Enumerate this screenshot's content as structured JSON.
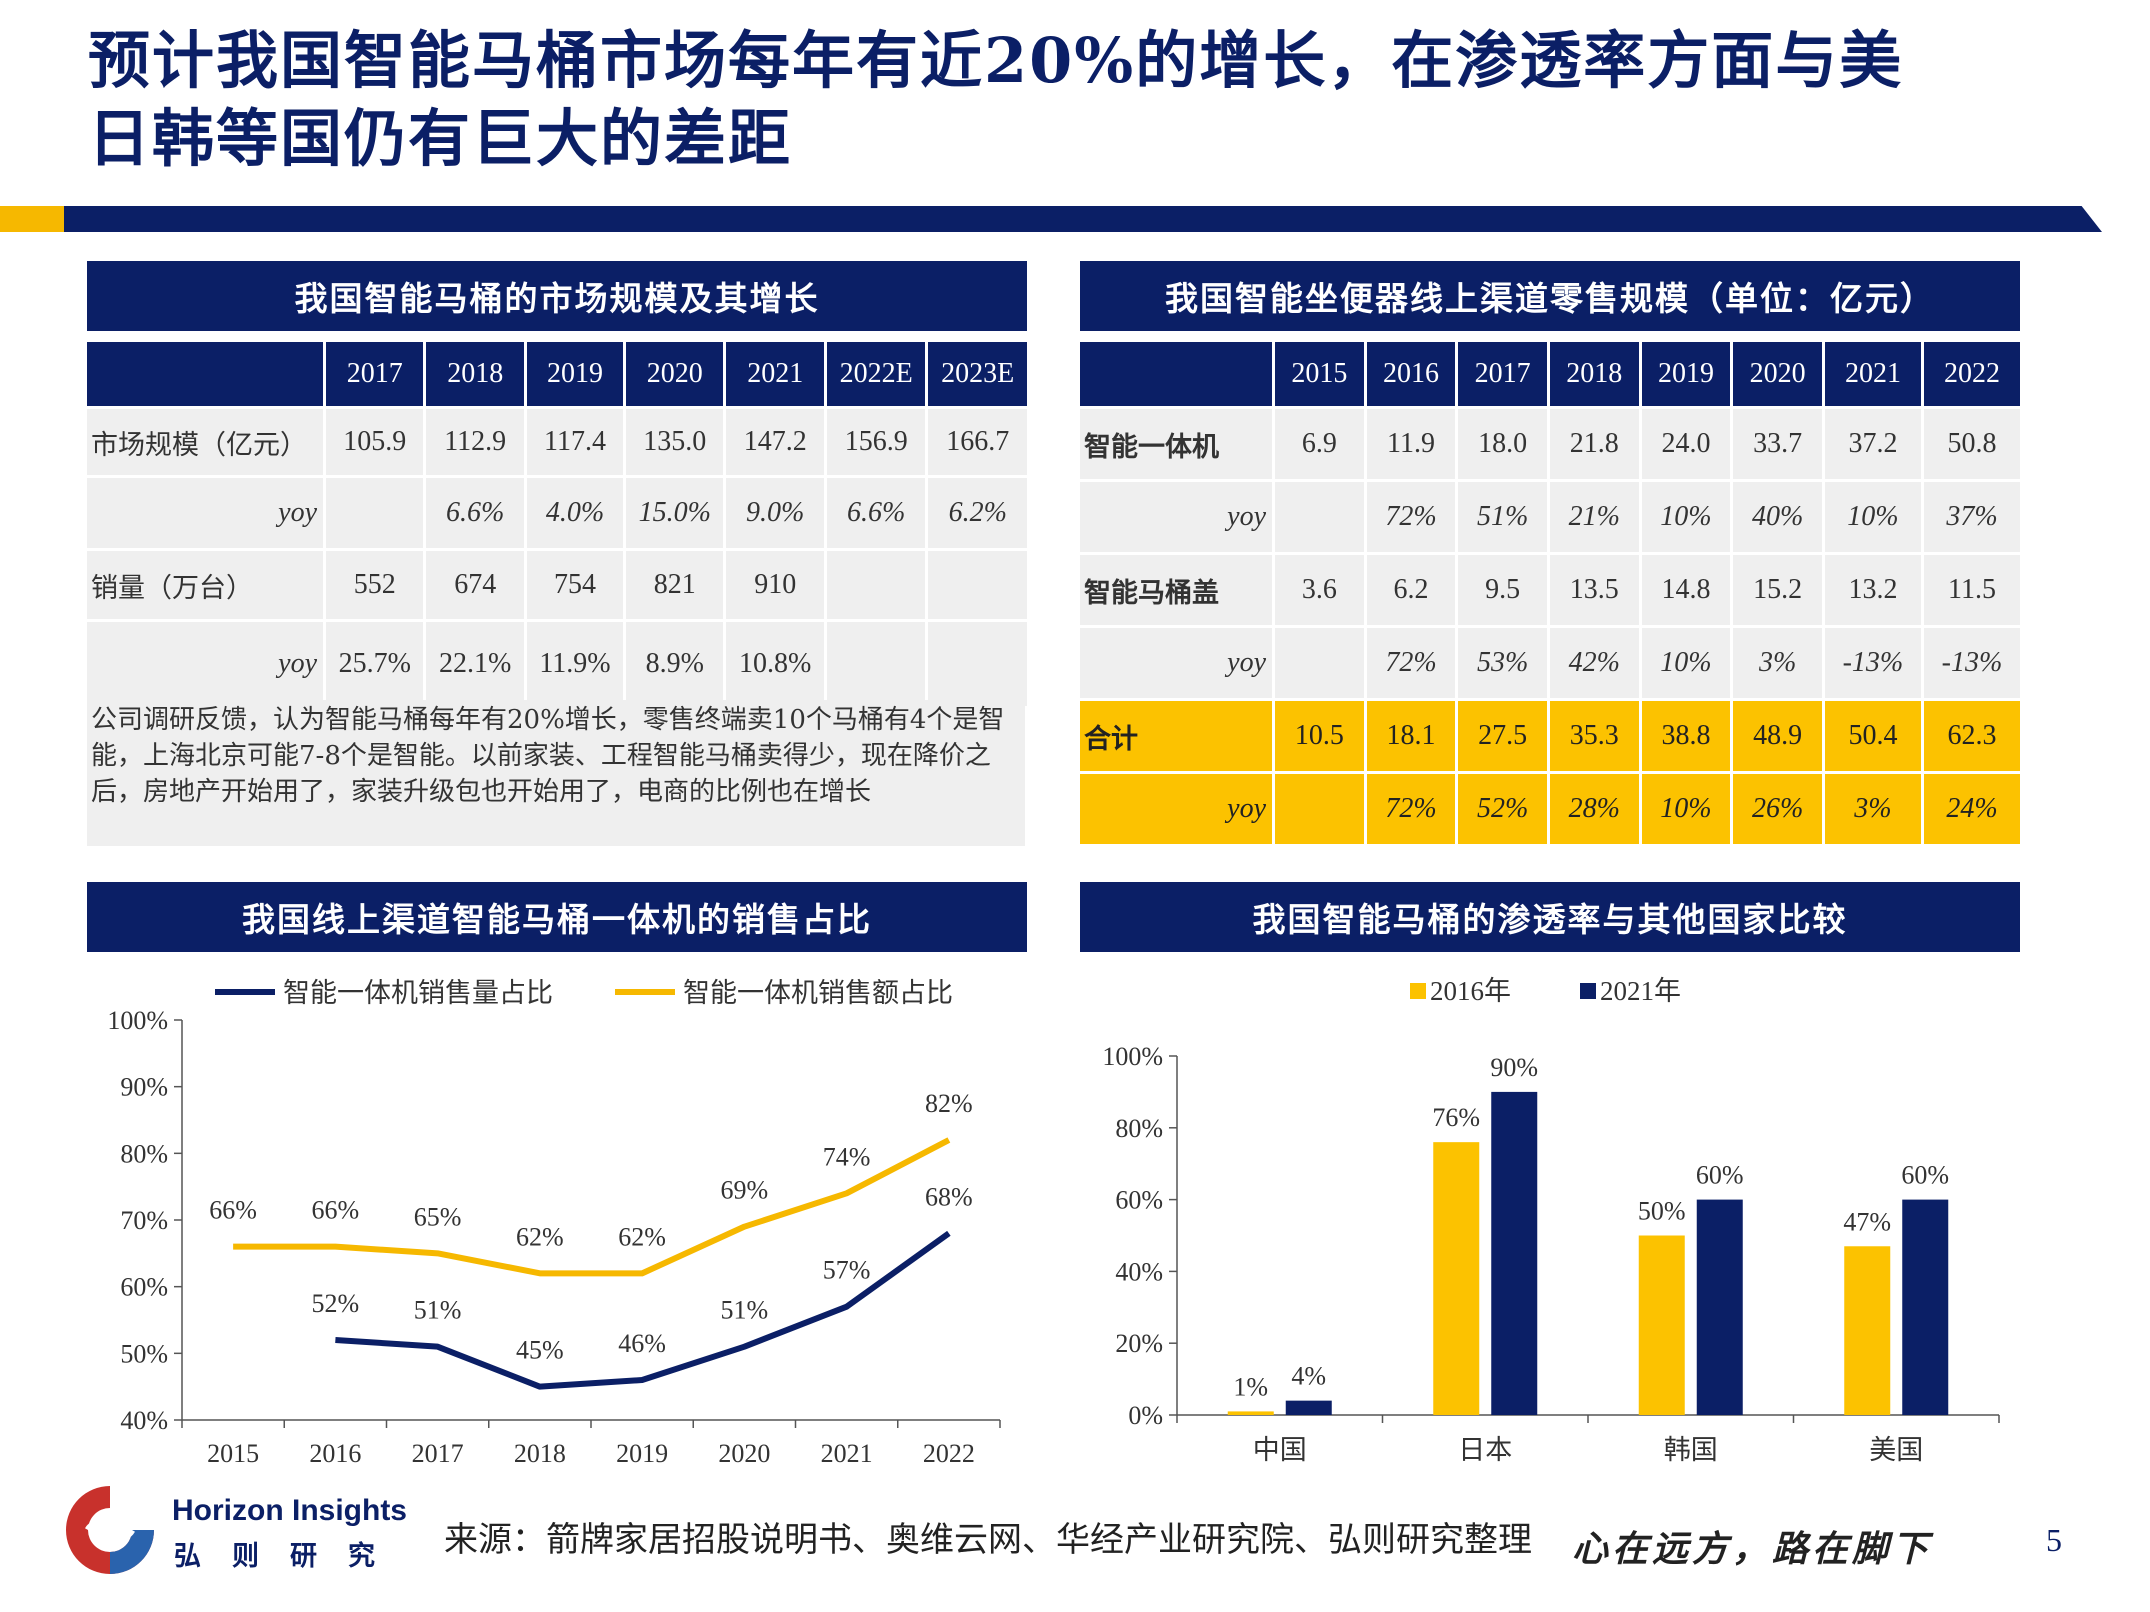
{
  "title": {
    "line1": "预计我国智能马桶市场每年有近20%的增长，在渗透率方面与美",
    "line2": "日韩等国仍有巨大的差距"
  },
  "colors": {
    "navy": "#0b1f66",
    "gold": "#fcc200",
    "gray": "#efefef"
  },
  "panel1": {
    "header": "我国智能马桶的市场规模及其增长",
    "columns": [
      "2017",
      "2018",
      "2019",
      "2020",
      "2021",
      "2022E",
      "2023E"
    ],
    "rows": [
      {
        "label": "市场规模（亿元）",
        "cells": [
          "105.9",
          "112.9",
          "117.4",
          "135.0",
          "147.2",
          "156.9",
          "166.7"
        ]
      },
      {
        "label": "yoy",
        "cells": [
          "",
          "6.6%",
          "4.0%",
          "15.0%",
          "9.0%",
          "6.6%",
          "6.2%"
        ]
      },
      {
        "label": "销量（万台）",
        "cells": [
          "552",
          "674",
          "754",
          "821",
          "910",
          "",
          ""
        ]
      },
      {
        "label": "yoy",
        "cells": [
          "25.7%",
          "22.1%",
          "11.9%",
          "8.9%",
          "10.8%",
          "",
          ""
        ]
      }
    ],
    "note": "公司调研反馈，认为智能马桶每年有20%增长，零售终端卖10个马桶有4个是智能，上海北京可能7-8个是智能。以前家装、工程智能马桶卖得少，现在降价之后，房地产开始用了，家装升级包也开始用了，电商的比例也在增长"
  },
  "panel2": {
    "header": "我国智能坐便器线上渠道零售规模（单位：亿元）",
    "columns": [
      "2015",
      "2016",
      "2017",
      "2018",
      "2019",
      "2020",
      "2021",
      "2022"
    ],
    "rows": [
      {
        "label": "智能一体机",
        "cells": [
          "6.9",
          "11.9",
          "18.0",
          "21.8",
          "24.0",
          "33.7",
          "37.2",
          "50.8"
        ]
      },
      {
        "label": "yoy",
        "cells": [
          "",
          "72%",
          "51%",
          "21%",
          "10%",
          "40%",
          "10%",
          "37%"
        ]
      },
      {
        "label": "智能马桶盖",
        "cells": [
          "3.6",
          "6.2",
          "9.5",
          "13.5",
          "14.8",
          "15.2",
          "13.2",
          "11.5"
        ]
      },
      {
        "label": "yoy",
        "cells": [
          "",
          "72%",
          "53%",
          "42%",
          "10%",
          "3%",
          "-13%",
          "-13%"
        ]
      },
      {
        "label": "合计",
        "cells": [
          "10.5",
          "18.1",
          "27.5",
          "35.3",
          "38.8",
          "48.9",
          "50.4",
          "62.3"
        ]
      },
      {
        "label": "yoy",
        "cells": [
          "",
          "72%",
          "52%",
          "28%",
          "10%",
          "26%",
          "3%",
          "24%"
        ]
      }
    ]
  },
  "panel3": {
    "header": "我国线上渠道智能马桶一体机的销售占比"
  },
  "panel4": {
    "header": "我国智能马桶的渗透率与其他国家比较"
  },
  "chart_data": [
    {
      "type": "line",
      "x": [
        "2015",
        "2016",
        "2017",
        "2018",
        "2019",
        "2020",
        "2021",
        "2022"
      ],
      "ylim": [
        0.4,
        1.0
      ],
      "yticks": [
        "40%",
        "50%",
        "60%",
        "70%",
        "80%",
        "90%",
        "100%"
      ],
      "legend_position": "top",
      "series": [
        {
          "name": "智能一体机销售量占比",
          "color": "#0b1f66",
          "values": [
            null,
            0.52,
            0.51,
            0.45,
            0.46,
            0.51,
            0.57,
            0.68
          ],
          "labels": [
            "",
            "52%",
            "51%",
            "45%",
            "46%",
            "51%",
            "57%",
            "68%"
          ]
        },
        {
          "name": "智能一体机销售额占比",
          "color": "#f6b800",
          "values": [
            0.66,
            0.66,
            0.65,
            0.62,
            0.62,
            0.69,
            0.74,
            0.82
          ],
          "labels": [
            "66%",
            "66%",
            "65%",
            "62%",
            "62%",
            "69%",
            "74%",
            "82%"
          ]
        }
      ]
    },
    {
      "type": "bar",
      "categories": [
        "中国",
        "日本",
        "韩国",
        "美国"
      ],
      "ylim": [
        0,
        1.0
      ],
      "yticks": [
        "0%",
        "20%",
        "40%",
        "60%",
        "80%",
        "100%"
      ],
      "legend_position": "top",
      "series": [
        {
          "name": "2016年",
          "color": "#fcc200",
          "values": [
            0.01,
            0.76,
            0.5,
            0.47
          ],
          "labels": [
            "1%",
            "76%",
            "50%",
            "47%"
          ]
        },
        {
          "name": "2021年",
          "color": "#0b1f66",
          "values": [
            0.04,
            0.9,
            0.6,
            0.6
          ],
          "labels": [
            "4%",
            "90%",
            "60%",
            "60%"
          ]
        }
      ]
    }
  ],
  "footer": {
    "brand_en": "Horizon Insights",
    "brand_cn": "弘则研究",
    "source": "来源：箭牌家居招股说明书、奥维云网、华经产业研究院、弘则研究整理",
    "slogan": "心在远方，路在脚下",
    "page": "5"
  }
}
